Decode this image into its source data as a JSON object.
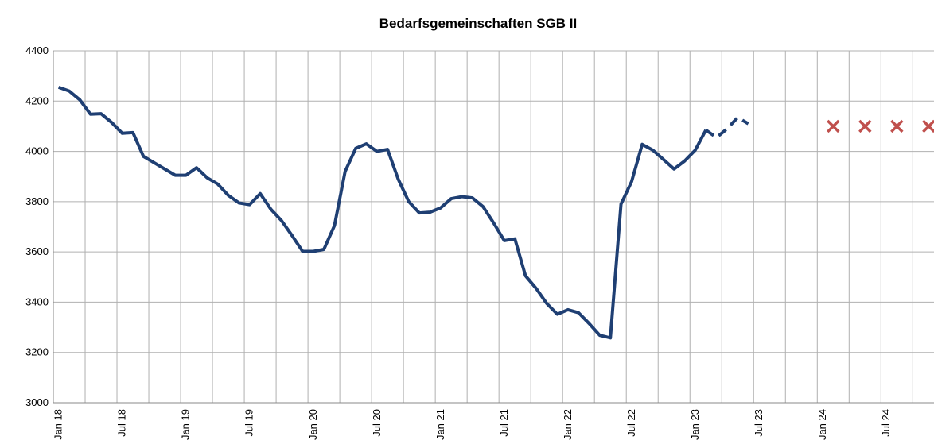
{
  "chart_data": {
    "type": "line",
    "title": "Bedarfsgemeinschaften SGB II",
    "categories": [
      "Jan 18",
      null,
      null,
      null,
      null,
      null,
      "Jul 18",
      null,
      null,
      null,
      null,
      null,
      "Jan 19",
      null,
      null,
      null,
      null,
      null,
      "Jul 19",
      null,
      null,
      null,
      null,
      null,
      "Jan 20",
      null,
      null,
      null,
      null,
      null,
      "Jul 20",
      null,
      null,
      null,
      null,
      null,
      "Jan 21",
      null,
      null,
      null,
      null,
      null,
      "Jul 21",
      null,
      null,
      null,
      null,
      null,
      "Jan 22",
      null,
      null,
      null,
      null,
      null,
      "Jul 22",
      null,
      null,
      null,
      null,
      null,
      "Jan 23",
      null,
      null,
      null,
      null,
      null,
      "Jul 23",
      null,
      null,
      null,
      null,
      null,
      "Jan 24",
      null,
      null,
      null,
      null,
      null,
      "Jul 24",
      null,
      null,
      null,
      null
    ],
    "series": [
      {
        "color": "#1f3f73",
        "values": [
          4255,
          4240,
          4205,
          4148,
          4150,
          4115,
          4072,
          4075,
          3980,
          3955,
          3930,
          3905,
          3905,
          3935,
          3895,
          3870,
          3825,
          3795,
          3788,
          3832,
          3770,
          3725,
          3665,
          3602,
          3602,
          3610,
          3705,
          3920,
          4012,
          4030,
          4000,
          4008,
          3890,
          3800,
          3755,
          3758,
          3775,
          3812,
          3820,
          3815,
          3780,
          3715,
          3645,
          3652,
          3505,
          3455,
          3395,
          3352,
          3370,
          3358,
          3315,
          3268,
          3258,
          3790,
          3880,
          4028,
          4005,
          3968,
          3930,
          3962,
          4005,
          4085,
          null,
          null,
          null,
          null,
          null,
          null,
          null,
          null,
          null,
          null,
          null,
          null,
          null,
          null,
          null,
          null,
          null,
          null,
          null,
          null,
          null
        ]
      },
      {
        "color": "#1f3f73",
        "dash": true,
        "values": [
          null,
          null,
          null,
          null,
          null,
          null,
          null,
          null,
          null,
          null,
          null,
          null,
          null,
          null,
          null,
          null,
          null,
          null,
          null,
          null,
          null,
          null,
          null,
          null,
          null,
          null,
          null,
          null,
          null,
          null,
          null,
          null,
          null,
          null,
          null,
          null,
          null,
          null,
          null,
          null,
          null,
          null,
          null,
          null,
          null,
          null,
          null,
          null,
          null,
          null,
          null,
          null,
          null,
          null,
          null,
          null,
          null,
          null,
          null,
          null,
          null,
          4085,
          4055,
          4090,
          4135,
          4110,
          null,
          null,
          null,
          null,
          null,
          null,
          null,
          null,
          null,
          null,
          null,
          null,
          null,
          null,
          null,
          null,
          null
        ]
      },
      {
        "color": "#c0504d",
        "marker": "x",
        "values": [
          null,
          null,
          null,
          null,
          null,
          null,
          null,
          null,
          null,
          null,
          null,
          null,
          null,
          null,
          null,
          null,
          null,
          null,
          null,
          null,
          null,
          null,
          null,
          null,
          null,
          null,
          null,
          null,
          null,
          null,
          null,
          null,
          null,
          null,
          null,
          null,
          null,
          null,
          null,
          null,
          null,
          null,
          null,
          null,
          null,
          null,
          null,
          null,
          null,
          null,
          null,
          null,
          null,
          null,
          null,
          null,
          null,
          null,
          null,
          null,
          null,
          null,
          null,
          null,
          null,
          null,
          null,
          null,
          null,
          null,
          null,
          null,
          null,
          4100,
          null,
          null,
          4100,
          null,
          null,
          4100,
          null,
          null,
          4100
        ]
      }
    ],
    "ylim": [
      3000,
      4400
    ],
    "yticks": [
      3000,
      3200,
      3400,
      3600,
      3800,
      4000,
      4200,
      4400
    ],
    "grid": true
  }
}
